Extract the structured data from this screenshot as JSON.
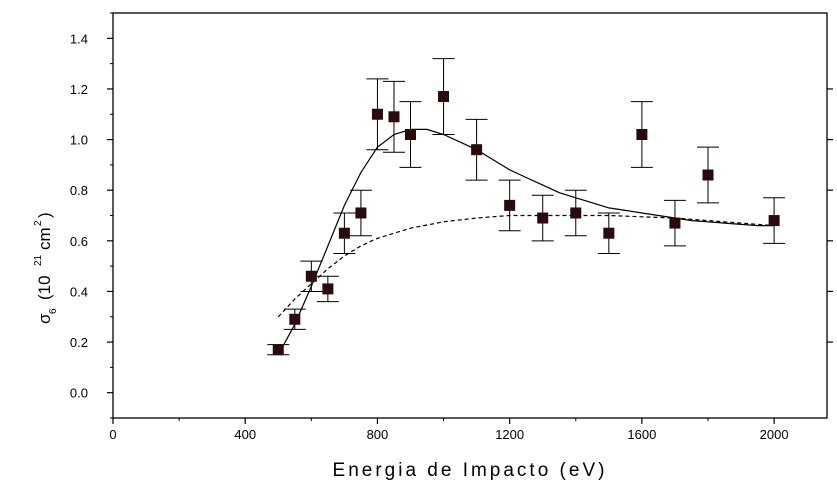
{
  "chart_data": {
    "type": "scatter",
    "title": "",
    "xlabel": "Energia de Impacto (eV)",
    "ylabel": {
      "sigma": "σ",
      "subscript": "6",
      "open": "(10",
      "exponent": "21",
      "unit": "cm",
      "unit_exponent": "2",
      "close": ")"
    },
    "xlim": [
      0,
      2160
    ],
    "ylim": [
      -0.1,
      1.5
    ],
    "xticks": [
      0,
      400,
      800,
      1200,
      1600,
      2000
    ],
    "yticks": [
      0.0,
      0.2,
      0.4,
      0.6,
      0.8,
      1.0,
      1.2,
      1.4
    ],
    "xtick_labels": [
      "0",
      "400",
      "800",
      "1200",
      "1600",
      "2000"
    ],
    "ytick_labels": [
      "0.0",
      "0.2",
      "0.4",
      "0.6",
      "0.8",
      "1.0",
      "1.2",
      "1.4"
    ],
    "grid": false,
    "series": [
      {
        "kind": "points-with-errorbars",
        "marker": "filled-square",
        "color": "#2a0a0a",
        "x": [
          500,
          550,
          600,
          650,
          700,
          750,
          800,
          850,
          900,
          1000,
          1100,
          1200,
          1300,
          1400,
          1500,
          1600,
          1700,
          1800,
          2000
        ],
        "y": [
          0.17,
          0.29,
          0.46,
          0.41,
          0.63,
          0.71,
          1.1,
          1.09,
          1.02,
          1.17,
          0.96,
          0.74,
          0.69,
          0.71,
          0.63,
          1.02,
          0.67,
          0.86,
          0.68
        ],
        "err": [
          0.02,
          0.04,
          0.06,
          0.05,
          0.08,
          0.09,
          0.14,
          0.14,
          0.13,
          0.15,
          0.12,
          0.1,
          0.09,
          0.09,
          0.08,
          0.13,
          0.09,
          0.11,
          0.09
        ]
      },
      {
        "kind": "line",
        "style": "solid",
        "color": "#000000",
        "x": [
          500,
          550,
          600,
          650,
          700,
          750,
          800,
          850,
          900,
          950,
          1000,
          1050,
          1100,
          1150,
          1200,
          1250,
          1300,
          1350,
          1400,
          1450,
          1500,
          1550,
          1600,
          1650,
          1700,
          1750,
          1800,
          1850,
          1900,
          1950,
          2000
        ],
        "y": [
          0.15,
          0.27,
          0.42,
          0.58,
          0.74,
          0.87,
          0.97,
          1.02,
          1.04,
          1.04,
          1.02,
          0.99,
          0.96,
          0.92,
          0.88,
          0.85,
          0.82,
          0.79,
          0.77,
          0.75,
          0.73,
          0.72,
          0.71,
          0.7,
          0.69,
          0.68,
          0.675,
          0.67,
          0.665,
          0.66,
          0.66
        ]
      },
      {
        "kind": "line",
        "style": "dashed",
        "color": "#000000",
        "x": [
          500,
          550,
          600,
          650,
          700,
          750,
          800,
          900,
          1000,
          1100,
          1200,
          1300,
          1400,
          1500,
          1600,
          1700,
          1800,
          1900,
          2000
        ],
        "y": [
          0.3,
          0.37,
          0.43,
          0.49,
          0.54,
          0.58,
          0.61,
          0.65,
          0.675,
          0.69,
          0.7,
          0.7,
          0.7,
          0.7,
          0.695,
          0.69,
          0.68,
          0.67,
          0.66
        ]
      }
    ]
  }
}
